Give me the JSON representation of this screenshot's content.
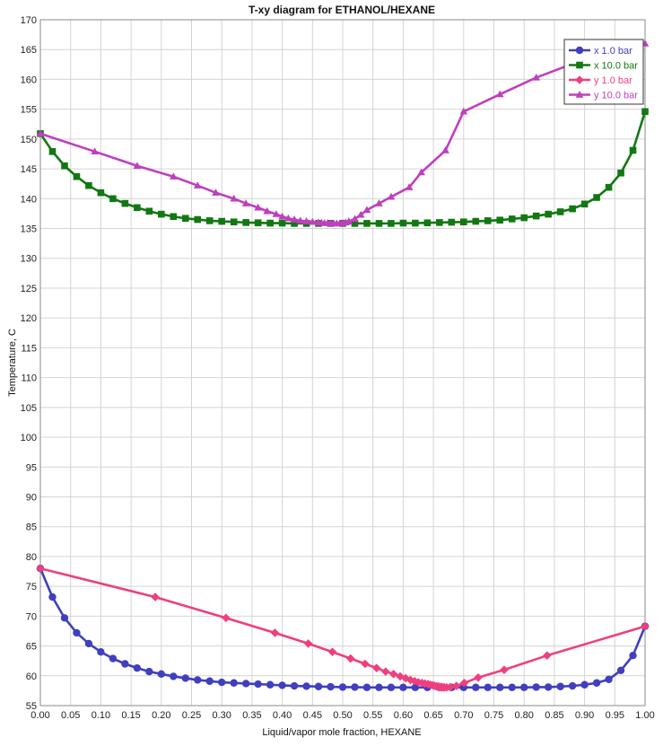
{
  "chart_data": {
    "type": "line",
    "title": "T-xy diagram for ETHANOL/HEXANE",
    "xlabel": "Liquid/vapor mole fraction, HEXANE",
    "ylabel": "Temperature, C",
    "xlim": [
      0,
      1
    ],
    "ylim": [
      55,
      170
    ],
    "x_ticks": [
      "0.00",
      "0.05",
      "0.10",
      "0.15",
      "0.20",
      "0.25",
      "0.30",
      "0.35",
      "0.40",
      "0.45",
      "0.50",
      "0.55",
      "0.60",
      "0.65",
      "0.70",
      "0.75",
      "0.80",
      "0.85",
      "0.90",
      "0.95",
      "1.00"
    ],
    "y_ticks": [
      "55",
      "60",
      "65",
      "70",
      "75",
      "80",
      "85",
      "90",
      "95",
      "100",
      "105",
      "110",
      "115",
      "120",
      "125",
      "130",
      "135",
      "140",
      "145",
      "150",
      "155",
      "160",
      "165",
      "170"
    ],
    "grid": true,
    "legend_position": "top-right",
    "series": [
      {
        "name": "x  1.0 bar",
        "color": "#3f3fbf",
        "marker": "circle",
        "x": [
          0.0,
          0.02,
          0.04,
          0.06,
          0.08,
          0.1,
          0.12,
          0.14,
          0.16,
          0.18,
          0.2,
          0.22,
          0.24,
          0.26,
          0.28,
          0.3,
          0.32,
          0.34,
          0.36,
          0.38,
          0.4,
          0.42,
          0.44,
          0.46,
          0.48,
          0.5,
          0.52,
          0.54,
          0.56,
          0.58,
          0.6,
          0.62,
          0.64,
          0.66,
          0.68,
          0.7,
          0.72,
          0.74,
          0.76,
          0.78,
          0.8,
          0.82,
          0.84,
          0.86,
          0.88,
          0.9,
          0.92,
          0.94,
          0.96,
          0.98,
          1.0
        ],
        "y": [
          78.0,
          73.2,
          69.7,
          67.2,
          65.4,
          64.0,
          62.9,
          62.0,
          61.3,
          60.7,
          60.3,
          59.9,
          59.6,
          59.3,
          59.1,
          58.9,
          58.8,
          58.7,
          58.6,
          58.5,
          58.4,
          58.3,
          58.25,
          58.2,
          58.15,
          58.1,
          58.1,
          58.05,
          58.05,
          58.05,
          58.05,
          58.05,
          58.05,
          58.05,
          58.05,
          58.05,
          58.05,
          58.05,
          58.05,
          58.05,
          58.05,
          58.1,
          58.1,
          58.2,
          58.3,
          58.5,
          58.8,
          59.4,
          60.9,
          63.4,
          68.3
        ]
      },
      {
        "name": "x  10.0 bar",
        "color": "#127812",
        "marker": "square",
        "x": [
          0.0,
          0.02,
          0.04,
          0.06,
          0.08,
          0.1,
          0.12,
          0.14,
          0.16,
          0.18,
          0.2,
          0.22,
          0.24,
          0.26,
          0.28,
          0.3,
          0.32,
          0.34,
          0.36,
          0.38,
          0.4,
          0.42,
          0.44,
          0.46,
          0.48,
          0.5,
          0.52,
          0.54,
          0.56,
          0.58,
          0.6,
          0.62,
          0.64,
          0.66,
          0.68,
          0.7,
          0.72,
          0.74,
          0.76,
          0.78,
          0.8,
          0.82,
          0.84,
          0.86,
          0.88,
          0.9,
          0.92,
          0.94,
          0.96,
          0.98,
          1.0
        ],
        "y": [
          150.9,
          147.9,
          145.5,
          143.7,
          142.2,
          141.0,
          140.0,
          139.2,
          138.5,
          137.9,
          137.4,
          137.0,
          136.7,
          136.5,
          136.3,
          136.2,
          136.1,
          136.0,
          135.95,
          135.9,
          135.9,
          135.85,
          135.85,
          135.85,
          135.85,
          135.85,
          135.85,
          135.85,
          135.85,
          135.85,
          135.9,
          135.9,
          135.95,
          136.0,
          136.05,
          136.1,
          136.2,
          136.3,
          136.4,
          136.6,
          136.8,
          137.1,
          137.4,
          137.8,
          138.3,
          139.1,
          140.2,
          141.9,
          144.3,
          148.1,
          154.6
        ]
      },
      {
        "name": "y  1.0 bar",
        "color": "#ef3f7f",
        "marker": "diamond",
        "x": [
          0.0,
          0.19,
          0.307,
          0.388,
          0.443,
          0.483,
          0.513,
          0.537,
          0.556,
          0.571,
          0.584,
          0.595,
          0.604,
          0.612,
          0.619,
          0.625,
          0.631,
          0.636,
          0.641,
          0.645,
          0.649,
          0.652,
          0.655,
          0.658,
          0.66,
          0.662,
          0.664,
          0.666,
          0.668,
          0.672,
          0.678,
          0.688,
          0.701,
          0.724,
          0.767,
          0.838,
          1.0
        ],
        "y": [
          78.0,
          73.2,
          69.7,
          67.2,
          65.4,
          64.0,
          62.9,
          62.0,
          61.3,
          60.7,
          60.3,
          59.9,
          59.6,
          59.3,
          59.1,
          58.9,
          58.8,
          58.7,
          58.6,
          58.5,
          58.4,
          58.3,
          58.25,
          58.2,
          58.15,
          58.1,
          58.1,
          58.05,
          58.05,
          58.05,
          58.1,
          58.3,
          58.8,
          59.7,
          61.0,
          63.4,
          68.3
        ]
      },
      {
        "name": "y  10.0 bar",
        "color": "#bf3fbf",
        "marker": "triangle",
        "x": [
          0.0,
          0.09,
          0.16,
          0.22,
          0.26,
          0.29,
          0.32,
          0.34,
          0.36,
          0.375,
          0.39,
          0.4,
          0.41,
          0.42,
          0.43,
          0.44,
          0.45,
          0.46,
          0.465,
          0.47,
          0.475,
          0.48,
          0.485,
          0.49,
          0.495,
          0.5,
          0.505,
          0.51,
          0.52,
          0.53,
          0.54,
          0.56,
          0.58,
          0.61,
          0.63,
          0.67,
          0.7,
          0.76,
          0.82,
          0.89,
          0.96,
          1.0
        ],
        "y": [
          150.9,
          147.9,
          145.5,
          143.7,
          142.2,
          141.0,
          140.0,
          139.2,
          138.5,
          137.9,
          137.4,
          137.0,
          136.7,
          136.5,
          136.3,
          136.2,
          136.1,
          136.0,
          135.95,
          135.9,
          135.9,
          135.85,
          135.85,
          135.85,
          135.85,
          135.9,
          136.0,
          136.2,
          136.6,
          137.3,
          138.1,
          139.2,
          140.3,
          141.9,
          144.4,
          148.1,
          154.6,
          157.5,
          160.3,
          163.0,
          165.8,
          166.0
        ]
      }
    ]
  }
}
